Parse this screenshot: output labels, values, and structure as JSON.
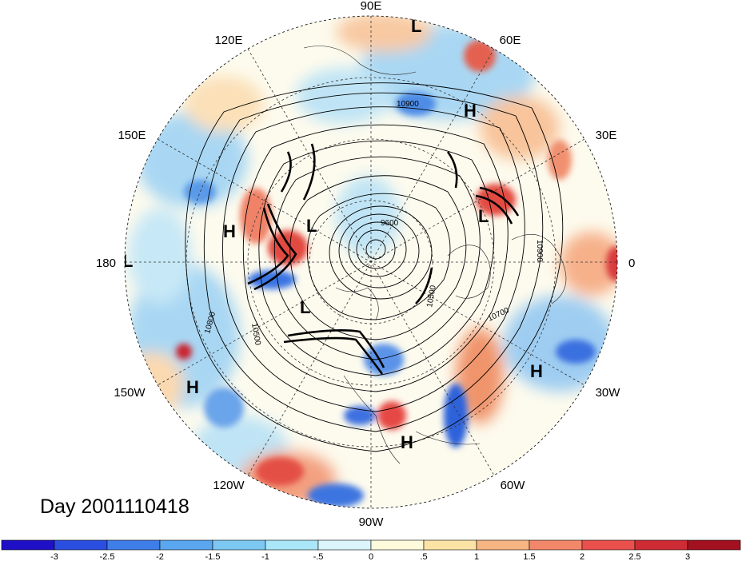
{
  "day_label": "Day 2001110418",
  "longitude_labels": [
    "90E",
    "60E",
    "30E",
    "0",
    "30W",
    "60W",
    "90W",
    "120W",
    "150W",
    "180",
    "150E",
    "120E"
  ],
  "pressure_systems": [
    {
      "type": "L",
      "text": "L"
    },
    {
      "type": "H",
      "text": "H"
    },
    {
      "type": "L",
      "text": "L"
    },
    {
      "type": "H",
      "text": "H"
    },
    {
      "type": "L",
      "text": "L"
    },
    {
      "type": "L",
      "text": "L"
    },
    {
      "type": "L",
      "text": "L"
    },
    {
      "type": "H",
      "text": "H"
    },
    {
      "type": "H",
      "text": "H"
    },
    {
      "type": "H",
      "text": "H"
    }
  ],
  "contour_labels": [
    "10900",
    "10900",
    "9600",
    "10500",
    "10700",
    "10800",
    "10500"
  ],
  "colorbar": {
    "ticks": [
      "-3",
      "-2.5",
      "-2",
      "-1.5",
      "-1",
      "-.5",
      "0",
      ".5",
      "1",
      "1.5",
      "2",
      "2.5",
      "3"
    ],
    "colors": [
      "#1f10c8",
      "#2a4ee0",
      "#3f7ee8",
      "#5aa6ef",
      "#7cc8f3",
      "#a9e6f7",
      "#dbf5fa",
      "#fefadc",
      "#fbe3a6",
      "#f6b582",
      "#f2876a",
      "#e9504c",
      "#cf2b35",
      "#a3101f"
    ]
  },
  "icons": {
    "hl_marker": "pressure-center-letter"
  }
}
